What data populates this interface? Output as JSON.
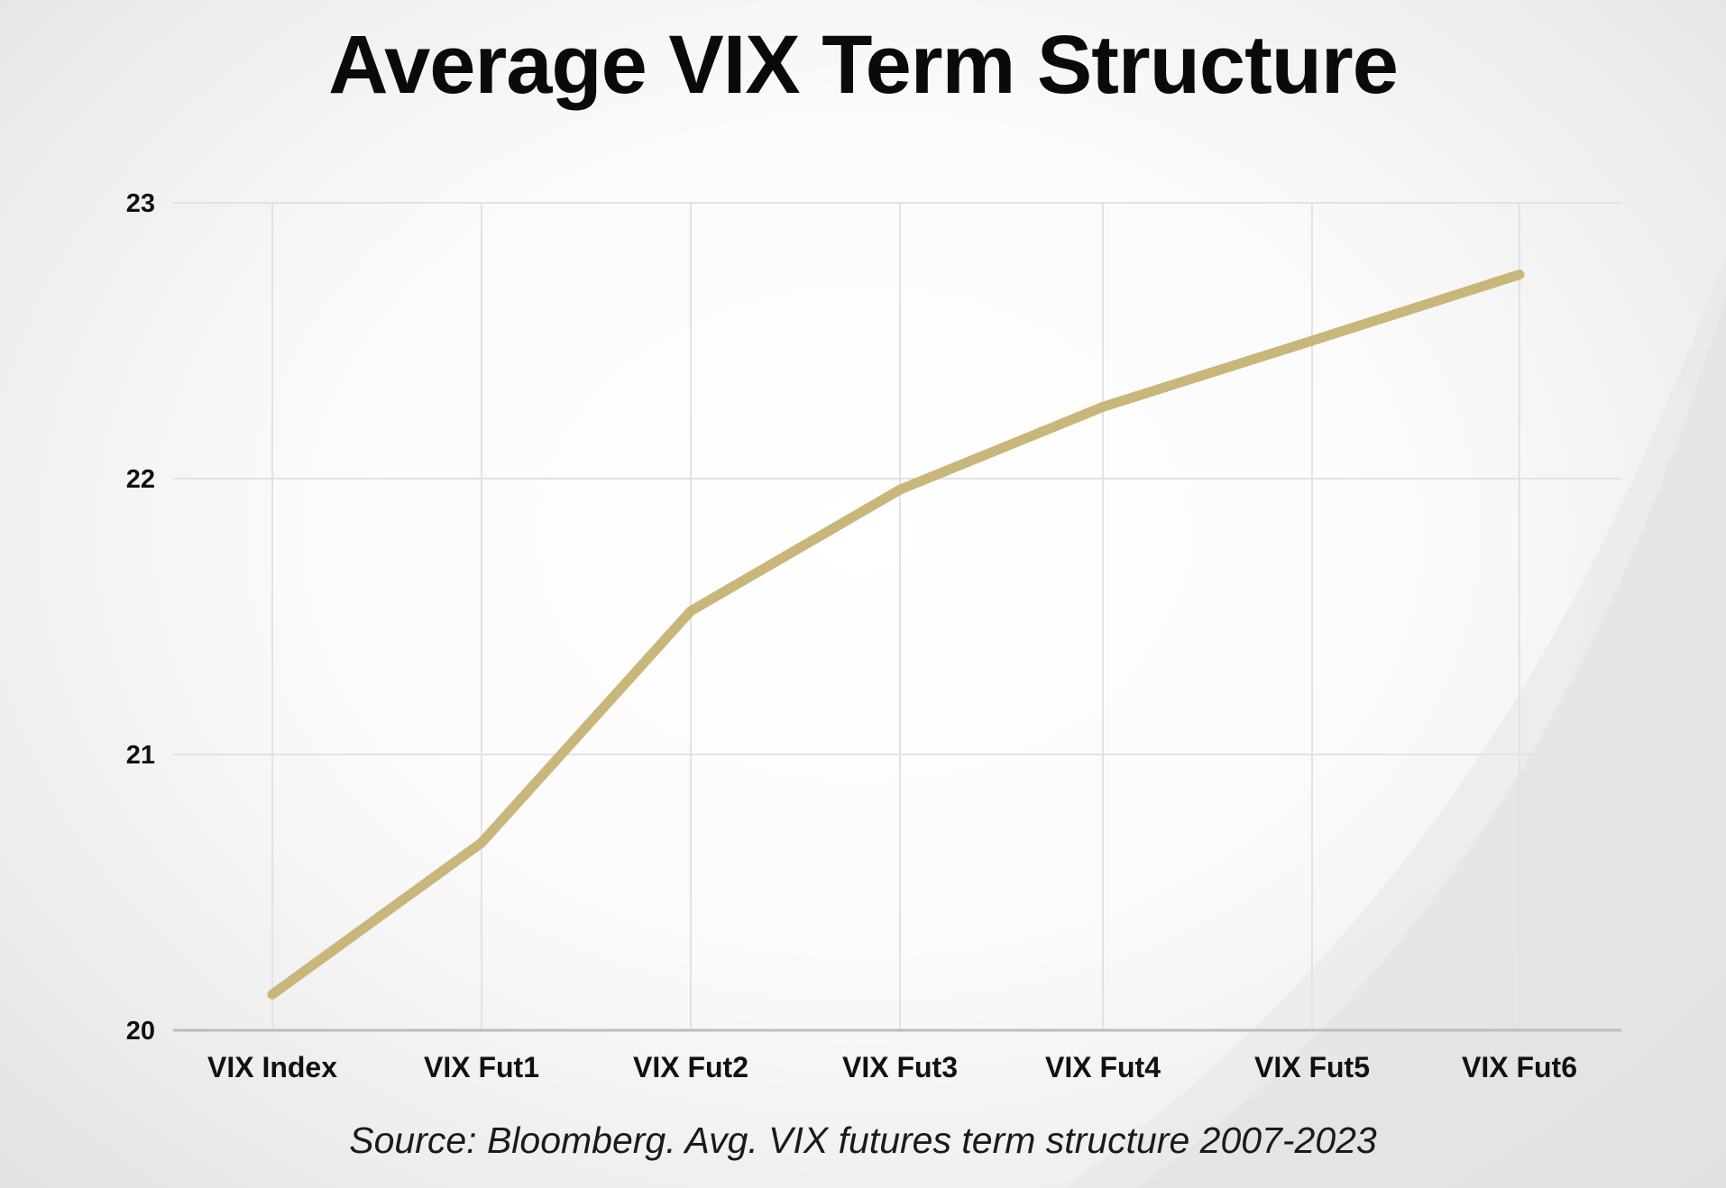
{
  "chart_data": {
    "type": "line",
    "title": "Average VIX Term Structure",
    "categories": [
      "VIX Index",
      "VIX Fut1",
      "VIX Fut2",
      "VIX Fut3",
      "VIX Fut4",
      "VIX Fut5",
      "VIX Fut6"
    ],
    "series": [
      {
        "values": [
          20.13,
          20.68,
          21.52,
          21.96,
          22.26,
          22.5,
          22.74
        ],
        "color": "#c9b67a"
      }
    ],
    "ylim": [
      20,
      23
    ],
    "yticks": [
      "20",
      "21",
      "22",
      "23"
    ],
    "grid": true,
    "legend": "none",
    "xlabel": "",
    "ylabel": ""
  },
  "source_note": "Source: Bloomberg. Avg. VIX futures term structure 2007-2023"
}
